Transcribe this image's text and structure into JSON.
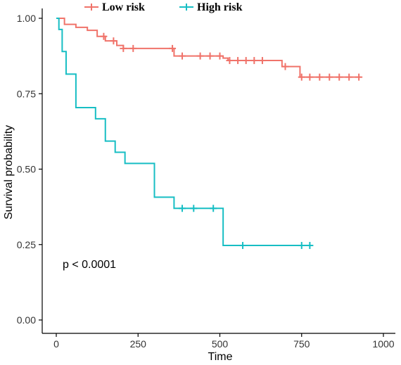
{
  "chart_data": {
    "type": "line",
    "xlabel": "Time",
    "ylabel": "Survival probability",
    "xlim": [
      0,
      1000
    ],
    "ylim": [
      0,
      1
    ],
    "xticks": [
      0,
      250,
      500,
      750,
      1000
    ],
    "xtick_labels": [
      "0",
      "250",
      "500",
      "750",
      "1000"
    ],
    "yticks": [
      0,
      0.25,
      0.5,
      0.75,
      1
    ],
    "ytick_labels": [
      "0.00",
      "0.25",
      "0.50",
      "0.75",
      "1.00"
    ],
    "grid": false,
    "legend_position": "top",
    "annotation": "p < 0.0001",
    "series": [
      {
        "name": "Low risk",
        "color": "#F0736A",
        "steps": [
          [
            0,
            1.0
          ],
          [
            25,
            0.98
          ],
          [
            60,
            0.97
          ],
          [
            95,
            0.96
          ],
          [
            125,
            0.94
          ],
          [
            150,
            0.925
          ],
          [
            185,
            0.91
          ],
          [
            205,
            0.9
          ],
          [
            360,
            0.875
          ],
          [
            510,
            0.868
          ],
          [
            525,
            0.86
          ],
          [
            690,
            0.84
          ],
          [
            745,
            0.805
          ],
          [
            930,
            0.805
          ]
        ],
        "censor_times": [
          145,
          175,
          205,
          235,
          355,
          385,
          440,
          470,
          500,
          530,
          555,
          580,
          605,
          630,
          700,
          750,
          775,
          805,
          835,
          865,
          895,
          925
        ]
      },
      {
        "name": "High risk",
        "color": "#17BEC4",
        "steps": [
          [
            0,
            1.0
          ],
          [
            8,
            0.963
          ],
          [
            18,
            0.89
          ],
          [
            30,
            0.815
          ],
          [
            60,
            0.704
          ],
          [
            120,
            0.667
          ],
          [
            150,
            0.593
          ],
          [
            180,
            0.556
          ],
          [
            210,
            0.519
          ],
          [
            300,
            0.407
          ],
          [
            360,
            0.37
          ],
          [
            510,
            0.247
          ],
          [
            780,
            0.247
          ]
        ],
        "censor_times": [
          385,
          420,
          480,
          570,
          750,
          775
        ]
      }
    ]
  }
}
